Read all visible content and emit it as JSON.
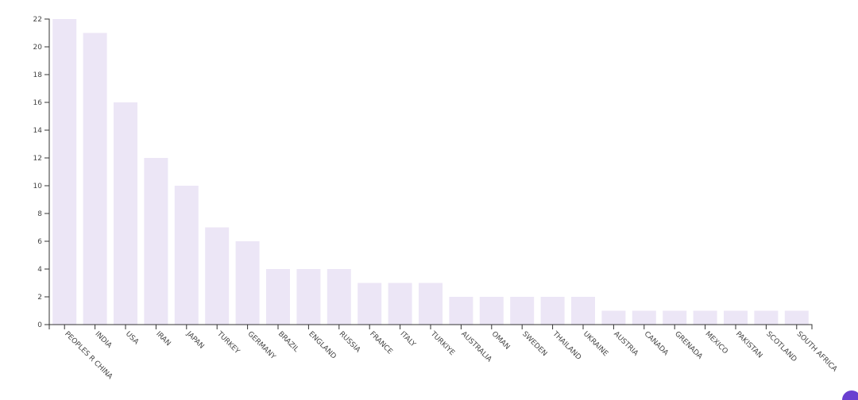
{
  "chart_data": {
    "type": "bar",
    "categories": [
      "PEOPLES R CHINA",
      "INDIA",
      "USA",
      "IRAN",
      "JAPAN",
      "TURKEY",
      "GERMANY",
      "BRAZIL",
      "ENGLAND",
      "RUSSIA",
      "FRANCE",
      "ITALY",
      "TURKIYE",
      "AUSTRALIA",
      "OMAN",
      "SWEDEN",
      "THAILAND",
      "UKRAINE",
      "AUSTRIA",
      "CANADA",
      "GRENADA",
      "MEXICO",
      "PAKISTAN",
      "SCOTLAND",
      "SOUTH AFRICA"
    ],
    "values": [
      22,
      21,
      16,
      12,
      10,
      7,
      6,
      4,
      4,
      4,
      3,
      3,
      3,
      2,
      2,
      2,
      2,
      2,
      1,
      1,
      1,
      1,
      1,
      1,
      1
    ],
    "color": "#ece6f6",
    "ylim": [
      0,
      22
    ],
    "yticks": [
      0,
      2,
      4,
      6,
      8,
      10,
      12,
      14,
      16,
      18,
      20,
      22
    ],
    "grid": false
  }
}
